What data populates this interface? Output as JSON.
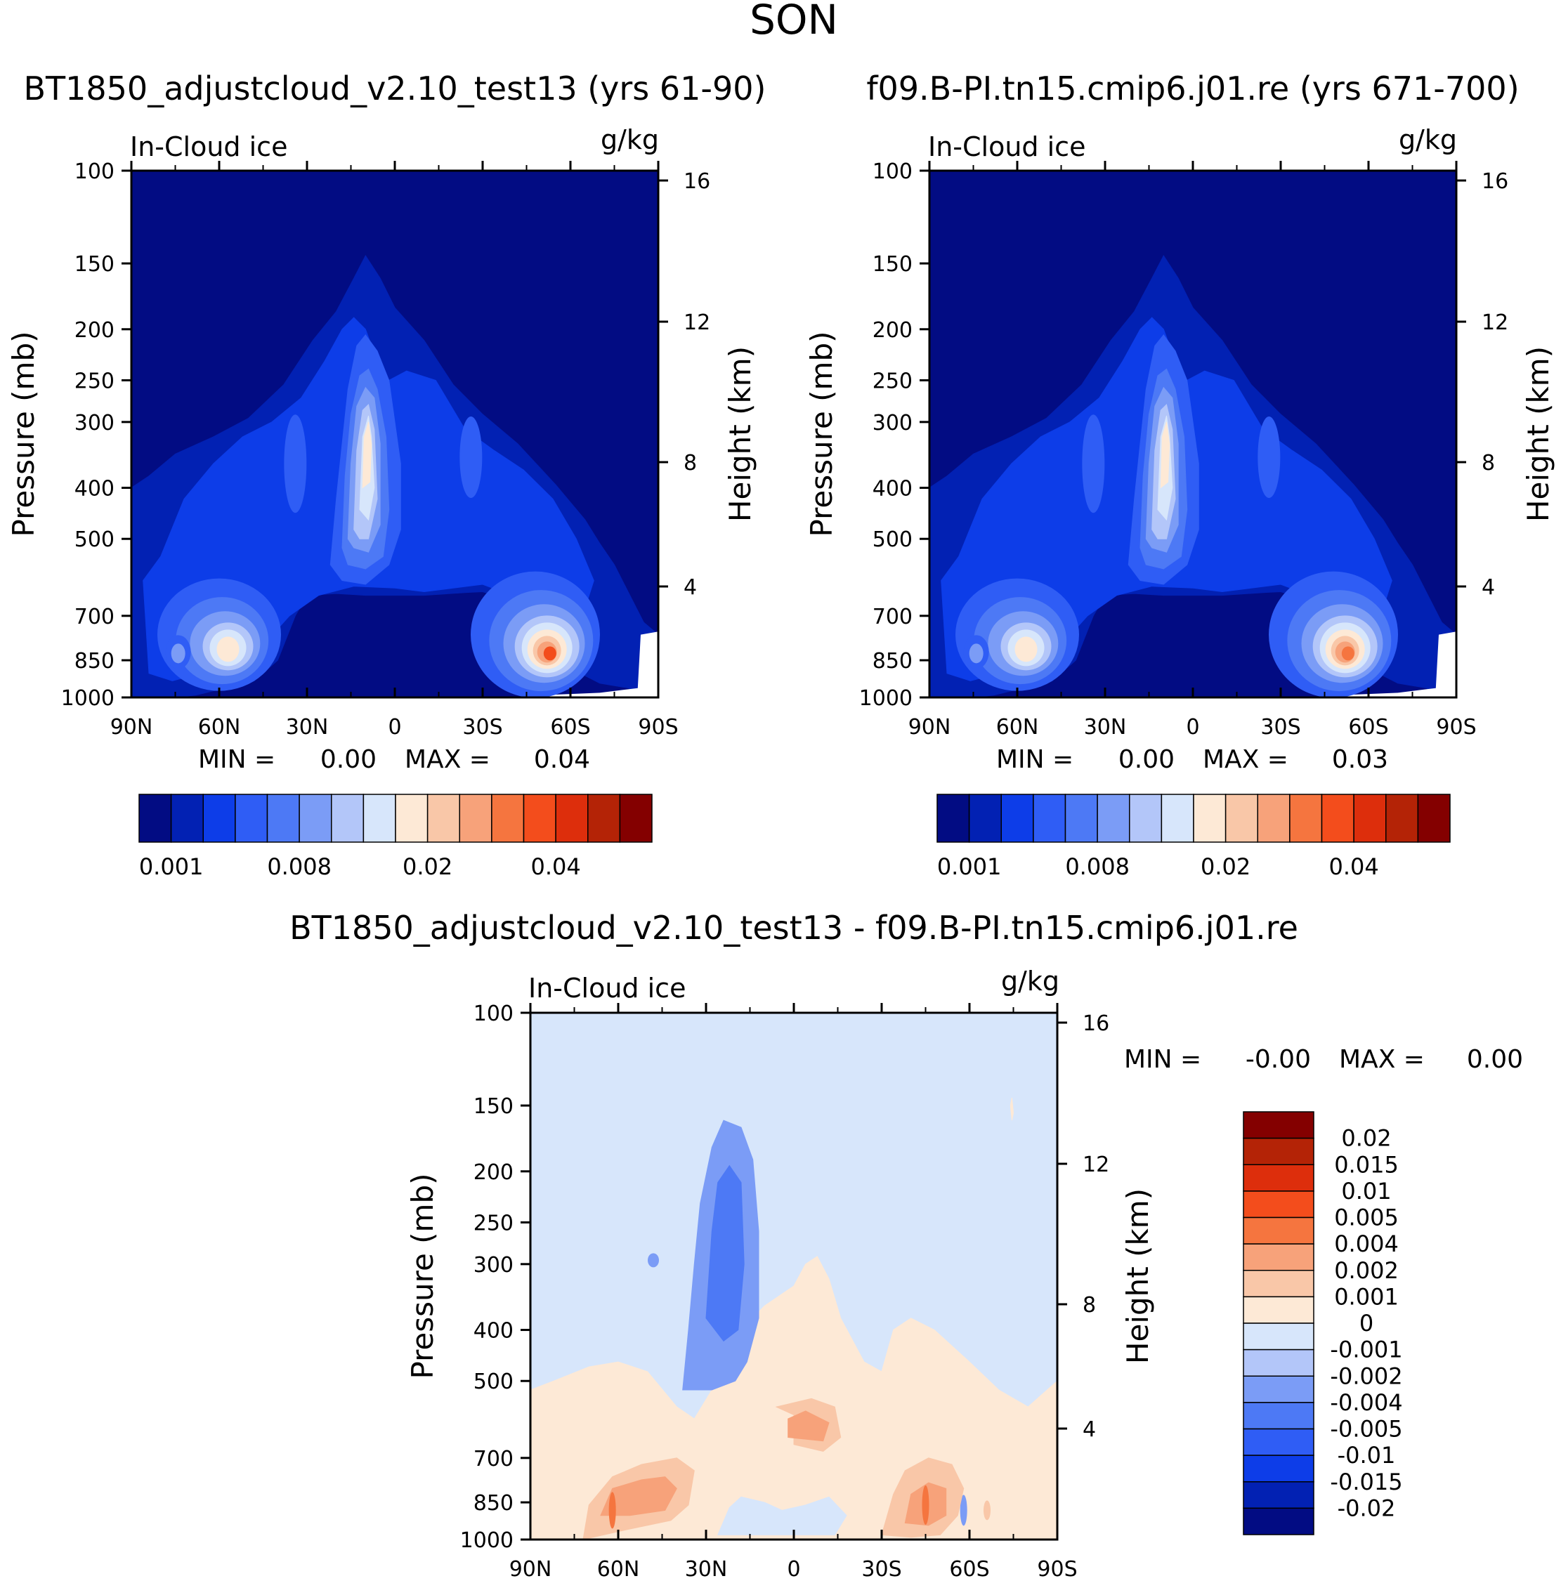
{
  "figure_title": "SON",
  "colors": {
    "seq": [
      "#020c83",
      "#0221b3",
      "#0d3de8",
      "#2f5df5",
      "#4d79f5",
      "#7b9cf6",
      "#b3c6f9",
      "#d7e6fb",
      "#fde9d6",
      "#f9c7a8",
      "#f7a27a",
      "#f5753f",
      "#f34d1c",
      "#dd2e0c",
      "#b42306",
      "#840000"
    ],
    "diff": [
      "#020c83",
      "#0221b3",
      "#0d3de8",
      "#2f5df5",
      "#4d79f5",
      "#7b9cf6",
      "#b3c6f9",
      "#d7e6fb",
      "#fde9d6",
      "#f9c7a8",
      "#f7a27a",
      "#f5753f",
      "#f34d1c",
      "#dd2e0c",
      "#b42306",
      "#840000"
    ]
  },
  "chart_data": [
    {
      "type": "filled-contour",
      "id": "p1",
      "title": "BT1850_adjustcloud_v2.10_test13 (yrs 61-90)",
      "variable": "In-Cloud ice",
      "units": "g/kg",
      "ylabel": "Pressure (mb)",
      "y2label": "Height (km)",
      "x": [
        "90N",
        "60N",
        "30N",
        "0",
        "30S",
        "60S",
        "90S"
      ],
      "y": [
        "100",
        "150",
        "200",
        "250",
        "300",
        "400",
        "500",
        "700",
        "850",
        "1000"
      ],
      "y2": [
        "16",
        "12",
        "8",
        "4"
      ],
      "xlim": [
        90,
        -90
      ],
      "ylim": [
        1000,
        100
      ],
      "min_label": "MIN =",
      "min_value": "0.00",
      "max_label": "MAX =",
      "max_value": "0.04",
      "colorbar_labels": [
        "0.001",
        "0.008",
        "0.02",
        "0.04"
      ],
      "features": [
        {
          "lat": 8,
          "p": 300,
          "level": 8,
          "desc": "tropical upper-tropospheric maximum"
        },
        {
          "lat": -52,
          "p": 820,
          "level": 13,
          "desc": "southern mid-latitude low-level maximum"
        },
        {
          "lat": 58,
          "p": 810,
          "level": 9,
          "desc": "northern mid-latitude low-level maximum"
        }
      ]
    },
    {
      "type": "filled-contour",
      "id": "p2",
      "title": "f09.B-PI.tn15.cmip6.j01.re (yrs 671-700)",
      "variable": "In-Cloud ice",
      "units": "g/kg",
      "ylabel": "Pressure (mb)",
      "y2label": "Height (km)",
      "x": [
        "90N",
        "60N",
        "30N",
        "0",
        "30S",
        "60S",
        "90S"
      ],
      "y": [
        "100",
        "150",
        "200",
        "250",
        "300",
        "400",
        "500",
        "700",
        "850",
        "1000"
      ],
      "y2": [
        "16",
        "12",
        "8",
        "4"
      ],
      "xlim": [
        90,
        -90
      ],
      "ylim": [
        1000,
        100
      ],
      "min_label": "MIN =",
      "min_value": "0.00",
      "max_label": "MAX =",
      "max_value": "0.03",
      "colorbar_labels": [
        "0.001",
        "0.008",
        "0.02",
        "0.04"
      ],
      "features": [
        {
          "lat": 8,
          "p": 300,
          "level": 9,
          "desc": "tropical upper-tropospheric maximum"
        },
        {
          "lat": -52,
          "p": 820,
          "level": 12,
          "desc": "southern mid-latitude low-level maximum"
        },
        {
          "lat": 55,
          "p": 810,
          "level": 9,
          "desc": "northern mid-latitude low-level maximum"
        }
      ]
    },
    {
      "type": "filled-contour",
      "id": "p3",
      "title": "BT1850_adjustcloud_v2.10_test13 - f09.B-PI.tn15.cmip6.j01.re",
      "variable": "In-Cloud ice",
      "units": "g/kg",
      "ylabel": "Pressure (mb)",
      "y2label": "Height (km)",
      "x": [
        "90N",
        "60N",
        "30N",
        "0",
        "30S",
        "60S",
        "90S"
      ],
      "y": [
        "100",
        "150",
        "200",
        "250",
        "300",
        "400",
        "500",
        "700",
        "850",
        "1000"
      ],
      "y2": [
        "16",
        "12",
        "8",
        "4"
      ],
      "xlim": [
        90,
        -90
      ],
      "ylim": [
        1000,
        100
      ],
      "min_label": "MIN =",
      "min_value": "-0.00",
      "max_label": "MAX =",
      "max_value": "0.00",
      "colorbar_labels": [
        "0.02",
        "0.015",
        "0.01",
        "0.005",
        "0.004",
        "0.002",
        "0.001",
        "0",
        "-0.001",
        "-0.002",
        "-0.004",
        "-0.005",
        "-0.01",
        "-0.015",
        "-0.02"
      ],
      "features": [
        {
          "lat": 15,
          "p": 250,
          "level": "-0.002",
          "desc": "tropical upper negative difference"
        },
        {
          "lat": -45,
          "p": 780,
          "level": "0.004",
          "desc": "southern low-level positive difference"
        },
        {
          "lat": 50,
          "p": 770,
          "level": "0.002",
          "desc": "northern low-level positive difference"
        }
      ]
    }
  ]
}
